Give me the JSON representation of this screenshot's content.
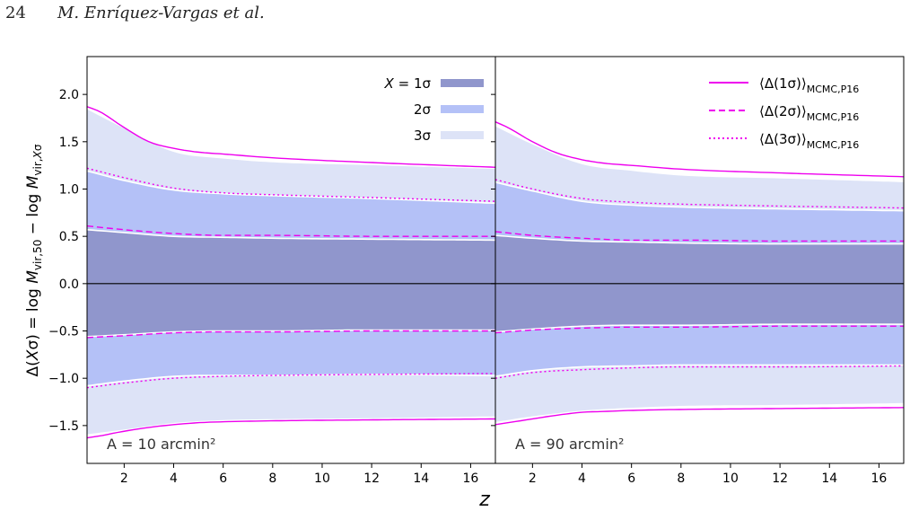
{
  "page_header": {
    "page_number": "24",
    "running_title": "M. Enríquez-Vargas et al."
  },
  "colors": {
    "band_1sigma": "#9096cc",
    "band_2sigma": "#b4c1f7",
    "band_3sigma": "#dde3f7",
    "ref_line": "#ee00ee",
    "edge_line": "#ffffff",
    "axis": "#000000"
  },
  "chart_data": {
    "type": "area",
    "xlabel": "z",
    "ylabel": "Δ(Xσ) = log M_vir,50 − log M_vir,Xσ",
    "shared_y": true,
    "xlim": [
      0.5,
      17
    ],
    "ylim": [
      -1.9,
      2.4
    ],
    "xticks": [
      2,
      4,
      6,
      8,
      10,
      12,
      14,
      16
    ],
    "yticks": [
      -1.5,
      -1.0,
      -0.5,
      0.0,
      0.5,
      1.0,
      1.5,
      2.0
    ],
    "ytick_labels": [
      "−1.5",
      "−1.0",
      "−0.5",
      "0.0",
      "0.5",
      "1.0",
      "1.5",
      "2.0"
    ],
    "band_legend": {
      "placement": "top-center",
      "prefix": "X = ",
      "entries": [
        "1σ",
        "2σ",
        "3σ"
      ]
    },
    "line_legend": {
      "placement": "top-right",
      "entries": [
        {
          "label": "⟨Δ(1σ)⟩",
          "sub": "MCMC,P16",
          "style": "solid"
        },
        {
          "label": "⟨Δ(2σ)⟩",
          "sub": "MCMC,P16",
          "style": "dashed"
        },
        {
          "label": "⟨Δ(3σ)⟩",
          "sub": "MCMC,P16",
          "style": "dotted"
        }
      ]
    },
    "panels": [
      {
        "annotation": "A = 10 arcmin²",
        "bands": [
          {
            "name": "1σ",
            "x": [
              0.5,
              2,
              4,
              6,
              8,
              12,
              17
            ],
            "upper": [
              0.57,
              0.54,
              0.5,
              0.49,
              0.48,
              0.47,
              0.46
            ],
            "lower": [
              -0.56,
              -0.54,
              -0.51,
              -0.5,
              -0.5,
              -0.49,
              -0.49
            ]
          },
          {
            "name": "2σ",
            "x": [
              0.5,
              2,
              4,
              6,
              8,
              12,
              17
            ],
            "upper": [
              1.19,
              1.09,
              0.99,
              0.95,
              0.93,
              0.9,
              0.85
            ],
            "lower": [
              -1.08,
              -1.03,
              -0.98,
              -0.97,
              -0.97,
              -0.96,
              -0.97
            ]
          },
          {
            "name": "3σ",
            "x": [
              0.5,
              2,
              4,
              6,
              8,
              12,
              17
            ],
            "upper": [
              1.85,
              1.65,
              1.4,
              1.33,
              1.29,
              1.26,
              1.22
            ],
            "lower": [
              -1.6,
              -1.55,
              -1.48,
              -1.45,
              -1.44,
              -1.43,
              -1.41
            ]
          }
        ],
        "lines": [
          {
            "name": "1σ",
            "style": "solid",
            "x": [
              0.5,
              1,
              2,
              3,
              4,
              5,
              6,
              8,
              12,
              17
            ],
            "upper": [
              1.87,
              1.82,
              1.65,
              1.5,
              1.43,
              1.39,
              1.37,
              1.33,
              1.28,
              1.23
            ],
            "lower": [
              -1.63,
              -1.61,
              -1.56,
              -1.52,
              -1.49,
              -1.47,
              -1.46,
              -1.45,
              -1.44,
              -1.43
            ]
          },
          {
            "name": "2σ",
            "style": "dashed",
            "x": [
              0.5,
              2,
              4,
              6,
              8,
              12,
              17
            ],
            "upper": [
              0.61,
              0.57,
              0.53,
              0.51,
              0.51,
              0.5,
              0.5
            ],
            "lower": [
              -0.57,
              -0.55,
              -0.52,
              -0.51,
              -0.51,
              -0.5,
              -0.5
            ]
          },
          {
            "name": "3σ",
            "style": "dotted",
            "x": [
              0.5,
              2,
              4,
              6,
              8,
              12,
              17
            ],
            "upper": [
              1.22,
              1.12,
              1.01,
              0.96,
              0.94,
              0.91,
              0.87
            ],
            "lower": [
              -1.1,
              -1.05,
              -1.0,
              -0.98,
              -0.97,
              -0.96,
              -0.95
            ]
          }
        ]
      },
      {
        "annotation": "A = 90 arcmin²",
        "bands": [
          {
            "name": "1σ",
            "x": [
              0.5,
              2,
              4,
              6,
              8,
              12,
              17
            ],
            "upper": [
              0.51,
              0.48,
              0.45,
              0.44,
              0.43,
              0.42,
              0.42
            ],
            "lower": [
              -0.51,
              -0.48,
              -0.45,
              -0.44,
              -0.44,
              -0.43,
              -0.43
            ]
          },
          {
            "name": "2σ",
            "x": [
              0.5,
              2,
              4,
              6,
              8,
              12,
              17
            ],
            "upper": [
              1.07,
              0.98,
              0.87,
              0.83,
              0.81,
              0.79,
              0.77
            ],
            "lower": [
              -0.98,
              -0.92,
              -0.88,
              -0.87,
              -0.86,
              -0.86,
              -0.86
            ]
          },
          {
            "name": "3σ",
            "x": [
              0.5,
              2,
              4,
              6,
              8,
              12,
              17
            ],
            "upper": [
              1.67,
              1.48,
              1.27,
              1.2,
              1.15,
              1.12,
              1.08
            ],
            "lower": [
              -1.47,
              -1.41,
              -1.35,
              -1.32,
              -1.3,
              -1.29,
              -1.27
            ]
          }
        ],
        "lines": [
          {
            "name": "1σ",
            "style": "solid",
            "x": [
              0.5,
              1,
              2,
              3,
              4,
              5,
              6,
              8,
              12,
              17
            ],
            "upper": [
              1.71,
              1.65,
              1.5,
              1.38,
              1.31,
              1.27,
              1.25,
              1.21,
              1.17,
              1.13
            ],
            "lower": [
              -1.49,
              -1.47,
              -1.43,
              -1.39,
              -1.36,
              -1.35,
              -1.34,
              -1.33,
              -1.32,
              -1.31
            ]
          },
          {
            "name": "2σ",
            "style": "dashed",
            "x": [
              0.5,
              2,
              4,
              6,
              8,
              12,
              17
            ],
            "upper": [
              0.55,
              0.51,
              0.48,
              0.46,
              0.46,
              0.45,
              0.45
            ],
            "lower": [
              -0.52,
              -0.49,
              -0.47,
              -0.46,
              -0.46,
              -0.45,
              -0.45
            ]
          },
          {
            "name": "3σ",
            "style": "dotted",
            "x": [
              0.5,
              2,
              4,
              6,
              8,
              12,
              17
            ],
            "upper": [
              1.1,
              1.0,
              0.9,
              0.86,
              0.84,
              0.82,
              0.8
            ],
            "lower": [
              -1.0,
              -0.94,
              -0.91,
              -0.89,
              -0.88,
              -0.88,
              -0.87
            ]
          }
        ]
      }
    ]
  }
}
